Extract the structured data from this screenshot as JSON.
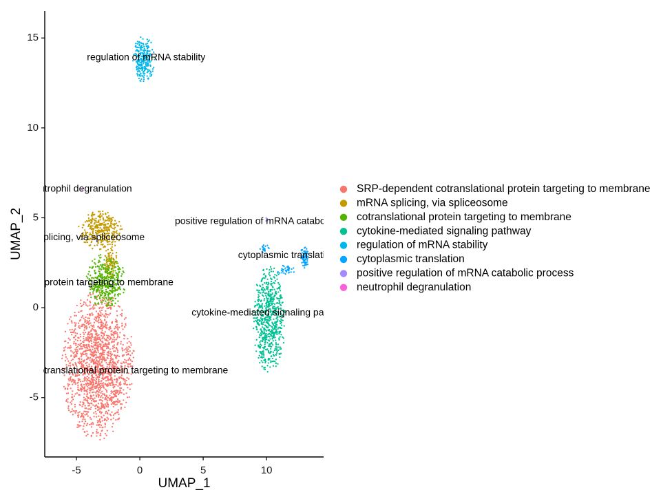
{
  "chart_data": {
    "type": "scatter",
    "xlabel": "UMAP_1",
    "ylabel": "UMAP_2",
    "xlim": [
      -7.5,
      14.5
    ],
    "ylim": [
      -8.3,
      16.5
    ],
    "x_ticks": [
      -5,
      0,
      5,
      10
    ],
    "y_ticks": [
      -5,
      0,
      5,
      10,
      15
    ],
    "grid": false,
    "legend_position": "right",
    "series": [
      {
        "name": "SRP-dependent cotranslational protein targeting to membrane",
        "color": "#F8766D",
        "label": "SRP-dependent cotranslational protein targeting to membrane",
        "label_at": [
          -3.5,
          -3.5
        ],
        "clusters": [
          {
            "cx": -3.3,
            "cy": -3.2,
            "sx": 2.9,
            "sy": 4.2,
            "n": 1700
          }
        ]
      },
      {
        "name": "mRNA splicing, via spliceosome",
        "color": "#C49A00",
        "label": "mRNA splicing, via spliceosome",
        "label_at": [
          -5.0,
          3.9
        ],
        "clusters": [
          {
            "cx": -3.1,
            "cy": 4.3,
            "sx": 1.8,
            "sy": 1.1,
            "n": 330
          },
          {
            "cx": -2.3,
            "cy": 2.5,
            "sx": 0.6,
            "sy": 0.9,
            "n": 90
          }
        ]
      },
      {
        "name": "cotranslational protein targeting to membrane",
        "color": "#53B400",
        "label": "cotranslational protein targeting to membrane",
        "label_at": [
          -5.0,
          1.4
        ],
        "clusters": [
          {
            "cx": -2.7,
            "cy": 1.5,
            "sx": 1.6,
            "sy": 1.5,
            "n": 420
          }
        ]
      },
      {
        "name": "cytokine-mediated signaling pathway",
        "color": "#00C094",
        "label": "cytokine-mediated signaling pathway",
        "label_at": [
          10.3,
          -0.3
        ],
        "clusters": [
          {
            "cx": 10.2,
            "cy": -0.6,
            "sx": 1.3,
            "sy": 3.0,
            "n": 700
          }
        ]
      },
      {
        "name": "regulation of mRNA stability",
        "color": "#00B6EB",
        "label": "regulation of mRNA stability",
        "label_at": [
          0.5,
          13.9
        ],
        "clusters": [
          {
            "cx": 0.3,
            "cy": 13.8,
            "sx": 0.9,
            "sy": 1.3,
            "n": 260
          }
        ]
      },
      {
        "name": "cytoplasmic translation",
        "color": "#06A4FF",
        "label": "cytoplasmic translation",
        "label_at": [
          11.6,
          2.9
        ],
        "clusters": [
          {
            "cx": 13.0,
            "cy": 2.8,
            "sx": 0.35,
            "sy": 0.6,
            "n": 70
          },
          {
            "cx": 11.6,
            "cy": 2.1,
            "sx": 0.8,
            "sy": 0.3,
            "n": 35
          },
          {
            "cx": 9.8,
            "cy": 3.3,
            "sx": 0.45,
            "sy": 0.25,
            "n": 20
          }
        ]
      },
      {
        "name": "positive regulation of mRNA catabolic process",
        "color": "#A58AFF",
        "label": "positive regulation of mRNA catabolic process",
        "label_at": [
          10.5,
          4.8
        ],
        "clusters": [
          {
            "cx": 10.0,
            "cy": 4.9,
            "sx": 0.12,
            "sy": 0.12,
            "n": 4
          }
        ]
      },
      {
        "name": "neutrophil degranulation",
        "color": "#FB61D7",
        "label": "neutrophil degranulation",
        "label_at": [
          -4.7,
          6.6
        ],
        "clusters": [
          {
            "cx": -4.5,
            "cy": 6.6,
            "sx": 0.08,
            "sy": 0.08,
            "n": 2
          }
        ]
      }
    ]
  }
}
